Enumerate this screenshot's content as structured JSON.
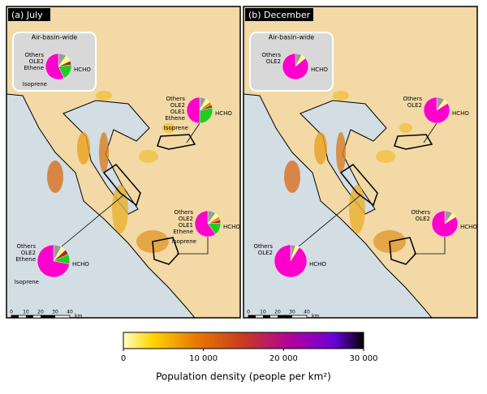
{
  "panels": [
    {
      "title": "(a) July",
      "basin_label": "Air-basin-wide",
      "pies": [
        {
          "slices": [
            {
              "label": "Others",
              "value": 10,
              "color": "#9a9a9a"
            },
            {
              "label": "OLE2",
              "value": 8,
              "color": "#ffff80"
            },
            {
              "label": "Ethene",
              "value": 5,
              "color": "#a52a2a"
            },
            {
              "label": "Isoprene",
              "value": 20,
              "color": "#22cc22"
            },
            {
              "label": "HCHO",
              "value": 57,
              "color": "#ff00cc"
            }
          ]
        },
        {
          "slices": [
            {
              "label": "Others",
              "value": 8,
              "color": "#9a9a9a"
            },
            {
              "label": "OLE2",
              "value": 6,
              "color": "#ffff80"
            },
            {
              "label": "OLE1",
              "value": 4,
              "color": "#e08a00"
            },
            {
              "label": "Ethene",
              "value": 4,
              "color": "#a52a2a"
            },
            {
              "label": "Isoprene",
              "value": 28,
              "color": "#22cc22"
            },
            {
              "label": "HCHO",
              "value": 50,
              "color": "#ff00cc"
            }
          ]
        },
        {
          "slices": [
            {
              "label": "Others",
              "value": 10,
              "color": "#9a9a9a"
            },
            {
              "label": "OLE2",
              "value": 6,
              "color": "#ffff80"
            },
            {
              "label": "OLE1",
              "value": 4,
              "color": "#e08a00"
            },
            {
              "label": "Ethene",
              "value": 4,
              "color": "#a52a2a"
            },
            {
              "label": "Isoprene",
              "value": 16,
              "color": "#22cc22"
            },
            {
              "label": "HCHO",
              "value": 60,
              "color": "#ff00cc"
            }
          ]
        },
        {
          "slices": [
            {
              "label": "Others",
              "value": 8,
              "color": "#9a9a9a"
            },
            {
              "label": "OLE2",
              "value": 5,
              "color": "#ffff80"
            },
            {
              "label": "Ethene",
              "value": 5,
              "color": "#a52a2a"
            },
            {
              "label": "Isoprene",
              "value": 10,
              "color": "#22cc22"
            },
            {
              "label": "HCHO",
              "value": 72,
              "color": "#ff00cc"
            }
          ]
        }
      ],
      "scale": {
        "ticks": [
          0,
          10,
          20,
          30,
          40
        ],
        "unit": "km"
      }
    },
    {
      "title": "(b) December",
      "basin_label": "Air-basin-wide",
      "pies": [
        {
          "slices": [
            {
              "label": "Others",
              "value": 8,
              "color": "#9a9a9a"
            },
            {
              "label": "OLE2",
              "value": 6,
              "color": "#ffff80"
            },
            {
              "label": "HCHO",
              "value": 86,
              "color": "#ff00cc"
            }
          ]
        },
        {
          "slices": [
            {
              "label": "Others",
              "value": 10,
              "color": "#9a9a9a"
            },
            {
              "label": "OLE2",
              "value": 6,
              "color": "#ffff80"
            },
            {
              "label": "HCHO",
              "value": 84,
              "color": "#ff00cc"
            }
          ]
        },
        {
          "slices": [
            {
              "label": "Others",
              "value": 10,
              "color": "#9a9a9a"
            },
            {
              "label": "OLE2",
              "value": 6,
              "color": "#ffff80"
            },
            {
              "label": "HCHO",
              "value": 84,
              "color": "#ff00cc"
            }
          ]
        },
        {
          "slices": [
            {
              "label": "Others",
              "value": 5,
              "color": "#9a9a9a"
            },
            {
              "label": "OLE2",
              "value": 4,
              "color": "#ffff80"
            },
            {
              "label": "HCHO",
              "value": 91,
              "color": "#ff00cc"
            }
          ]
        }
      ],
      "scale": {
        "ticks": [
          0,
          10,
          20,
          30,
          40
        ],
        "unit": "km"
      }
    }
  ],
  "colorbar": {
    "label": "Population density (people per km²)",
    "lim": [
      0,
      30000
    ],
    "ticks": [
      0,
      {
        "value": 10000,
        "label": "10 000"
      },
      {
        "value": 20000,
        "label": "20 000"
      },
      {
        "value": 30000,
        "label": "30 000"
      }
    ]
  }
}
